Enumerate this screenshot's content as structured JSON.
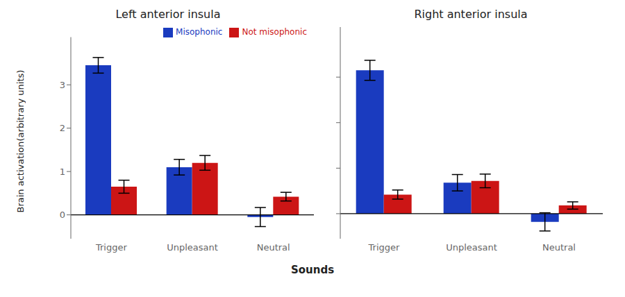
{
  "chart_data": [
    {
      "type": "bar",
      "title": "Left anterior insula",
      "xlabel": "Sounds",
      "ylabel": "Brain activation\n(arbitrary units)",
      "categories": [
        "Trigger",
        "Unpleasant",
        "Neutral"
      ],
      "series": [
        {
          "name": "Misophonic",
          "color": "#1a3bbf",
          "values": [
            3.45,
            1.1,
            -0.05
          ],
          "errors": [
            0.18,
            0.18,
            0.22
          ]
        },
        {
          "name": "Not misophonic",
          "color": "#cc1515",
          "values": [
            0.65,
            1.2,
            0.42
          ],
          "errors": [
            0.15,
            0.17,
            0.1
          ]
        }
      ],
      "ylim": [
        -0.55,
        4.1
      ],
      "yticks": [
        0,
        1,
        2,
        3
      ],
      "grid": false,
      "legend": "upper right"
    },
    {
      "type": "bar",
      "title": "Right anterior insula",
      "categories": [
        "Trigger",
        "Unpleasant",
        "Neutral"
      ],
      "series": [
        {
          "name": "Misophonic",
          "color": "#1a3bbf",
          "values": [
            3.15,
            0.68,
            -0.18
          ],
          "errors": [
            0.22,
            0.18,
            0.2
          ]
        },
        {
          "name": "Not misophonic",
          "color": "#cc1515",
          "values": [
            0.42,
            0.72,
            0.18
          ],
          "errors": [
            0.1,
            0.15,
            0.08
          ]
        }
      ],
      "ylim": [
        -0.55,
        4.1
      ],
      "yticks": [
        0,
        1,
        2,
        3
      ],
      "grid": false,
      "tick_labels": "x"
    }
  ]
}
